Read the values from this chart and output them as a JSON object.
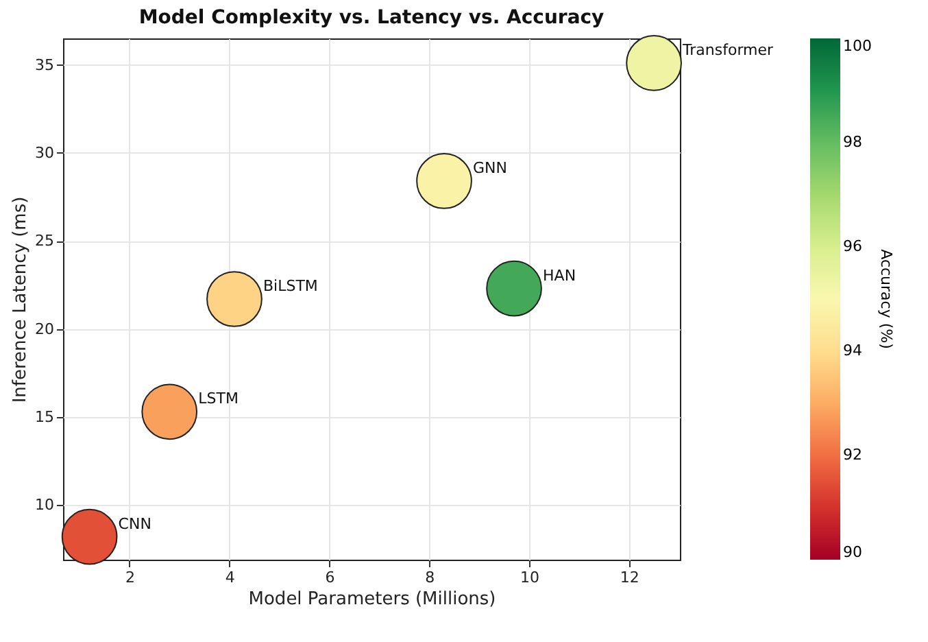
{
  "chart_data": {
    "type": "scatter",
    "title": "Model Complexity vs. Latency vs. Accuracy",
    "xlabel": "Model Parameters (Millions)",
    "ylabel": "Inference Latency (ms)",
    "clabel": "Accuracy (%)",
    "x": [
      1.2,
      2.8,
      4.1,
      8.3,
      9.7,
      12.5
    ],
    "values": [
      8.2,
      15.3,
      21.7,
      28.4,
      22.3,
      35.1
    ],
    "cvalues": [
      91.5,
      92.8,
      93.8,
      94.8,
      98.5,
      95.3
    ],
    "clim": [
      90,
      100
    ],
    "cticks": [
      90,
      92,
      94,
      96,
      98,
      100
    ],
    "xlim": [
      0.67,
      13.02
    ],
    "xticks": [
      2,
      4,
      6,
      8,
      10,
      12
    ],
    "ylim": [
      6.9,
      36.5
    ],
    "yticks": [
      10,
      15,
      20,
      25,
      30,
      35
    ],
    "grid": true,
    "marker": "circle",
    "annotations": [
      {
        "text": "CNN",
        "x": 1.2,
        "y": 8.2
      },
      {
        "text": "LSTM",
        "x": 2.8,
        "y": 15.3
      },
      {
        "text": "BiLSTM",
        "x": 4.1,
        "y": 21.7
      },
      {
        "text": "GNN",
        "x": 8.3,
        "y": 28.4
      },
      {
        "text": "HAN",
        "x": 9.7,
        "y": 22.3
      },
      {
        "text": "Transformer",
        "x": 12.5,
        "y": 35.1
      }
    ]
  }
}
